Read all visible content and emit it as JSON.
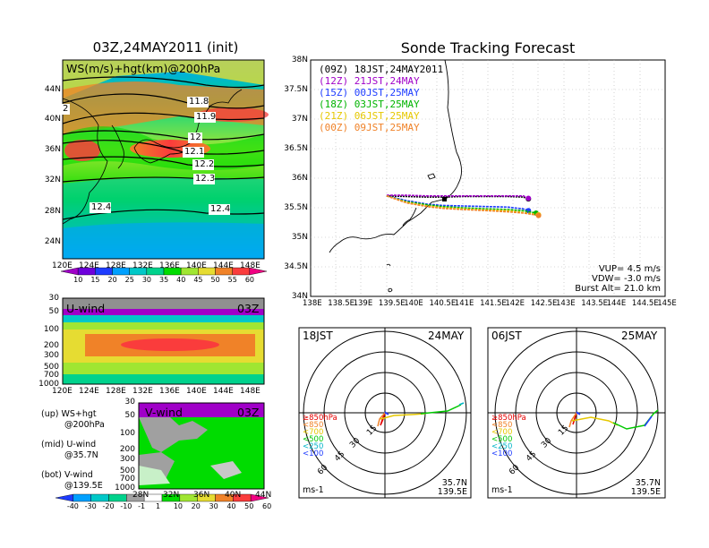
{
  "left": {
    "map": {
      "title": "03Z,24MAY2011 (init)",
      "label": "WS(m/s)+hgt(km)@200hPa",
      "lat_ticks": [
        "44N",
        "40N",
        "36N",
        "32N",
        "28N",
        "24N"
      ],
      "lon_ticks": [
        "120E",
        "124E",
        "128E",
        "132E",
        "136E",
        "140E",
        "144E",
        "148E"
      ],
      "contours": [
        "11.8",
        "11.9",
        "12",
        "12.1",
        "12.2",
        "12.3",
        "12.4",
        "12.4",
        "2"
      ],
      "colorbar_labels": [
        "10",
        "15",
        "20",
        "25",
        "30",
        "35",
        "40",
        "45",
        "50",
        "55",
        "60"
      ],
      "colorbar_colors": [
        "#a000c8",
        "#6e00dc",
        "#1e3cff",
        "#00a0ff",
        "#00c8c8",
        "#00d28c",
        "#00dc00",
        "#a0e632",
        "#e6dc32",
        "#f08228",
        "#fa3c3c",
        "#f00082"
      ]
    },
    "u_wind": {
      "label": "U-wind",
      "time": "03Z",
      "y_ticks": [
        "30",
        "50",
        "100",
        "200",
        "300",
        "500",
        "700",
        "1000"
      ],
      "x_ticks": [
        "120E",
        "124E",
        "128E",
        "132E",
        "136E",
        "140E",
        "144E",
        "148E"
      ]
    },
    "v_wind": {
      "label": "V-wind",
      "time": "03Z",
      "y_ticks": [
        "30",
        "50",
        "100",
        "200",
        "300",
        "500",
        "700",
        "1000"
      ],
      "x_ticks": [
        "28N",
        "32N",
        "36N",
        "40N",
        "44N"
      ]
    },
    "legend_notes": [
      {
        "a": "(up) WS+hgt",
        "b": "@200hPa"
      },
      {
        "a": "(mid) U-wind",
        "b": "@35.7N"
      },
      {
        "a": "(bot) V-wind",
        "b": "@139.5E"
      }
    ],
    "bottom_colorbar_labels": [
      "-40",
      "-30",
      "-20",
      "-10",
      "-1",
      "1",
      "10",
      "20",
      "30",
      "40",
      "50",
      "60"
    ],
    "bottom_colorbar_colors": [
      "#1e3cff",
      "#00a0ff",
      "#00c8c8",
      "#00d28c",
      "#a0a0a0",
      "#ffffff",
      "#00dc00",
      "#a0e632",
      "#e6dc32",
      "#f08228",
      "#fa3c3c",
      "#f00082"
    ]
  },
  "right": {
    "title": "Sonde Tracking Forecast",
    "legend": [
      {
        "code": "(09Z)",
        "text": "18JST,24MAY2011",
        "color": "#000000"
      },
      {
        "code": "(12Z)",
        "text": "21JST,24MAY",
        "color": "#a000c8"
      },
      {
        "code": "(15Z)",
        "text": "00JST,25MAY",
        "color": "#1e3cff"
      },
      {
        "code": "(18Z)",
        "text": "03JST,25MAY",
        "color": "#00b400"
      },
      {
        "code": "(21Z)",
        "text": "06JST,25MAY",
        "color": "#e6c800"
      },
      {
        "code": "(00Z)",
        "text": "09JST,25MAY",
        "color": "#f08228"
      }
    ],
    "lat_ticks": [
      "38N",
      "37.5N",
      "37N",
      "36.5N",
      "36N",
      "35.5N",
      "35N",
      "34.5N",
      "34N"
    ],
    "lon_ticks": [
      "138E",
      "138.5E",
      "139E",
      "139.5E",
      "140E",
      "140.5E",
      "141E",
      "141.5E",
      "142E",
      "142.5E",
      "143E",
      "143.5E",
      "144E",
      "144.5E",
      "145E"
    ],
    "params": [
      "VUP= 4.5 m/s",
      "VDW= -3.0 m/s",
      "Burst Alt= 21.0 km"
    ]
  },
  "polar": [
    {
      "time": "18JST",
      "date": "24MAY",
      "rings": [
        "15",
        "30",
        "45",
        "60"
      ],
      "pressure_levels": [
        "≥850hPa",
        "<850",
        "<700",
        "<500",
        "<250",
        "<100"
      ],
      "level_colors": [
        "#e60000",
        "#f08228",
        "#e6c800",
        "#00c800",
        "#00b4c8",
        "#1e3cff"
      ],
      "lat": "35.7N",
      "lon": "139.5E",
      "unit": "ms-1"
    },
    {
      "time": "06JST",
      "date": "25MAY",
      "rings": [
        "15",
        "30",
        "45",
        "60"
      ],
      "pressure_levels": [
        "≥850hPa",
        "<850",
        "<700",
        "<500",
        "<250",
        "<100"
      ],
      "level_colors": [
        "#e60000",
        "#f08228",
        "#e6c800",
        "#00c800",
        "#00b4c8",
        "#1e3cff"
      ],
      "lat": "35.7N",
      "lon": "139.5E",
      "unit": "ms-1"
    }
  ],
  "chart_data": [
    {
      "type": "heatmap",
      "title": "03Z,24MAY2011 (init)",
      "label": "WS(m/s)+hgt(km)@200hPa",
      "xlabel": "",
      "ylabel": "",
      "xlim": [
        "120E",
        "150E"
      ],
      "ylim": [
        "22N",
        "47N"
      ],
      "colorbar": [
        10,
        15,
        20,
        25,
        30,
        35,
        40,
        45,
        50,
        55,
        60
      ],
      "contour_values": [
        11.8,
        11.9,
        12,
        12.1,
        12.2,
        12.3,
        12.4
      ]
    },
    {
      "type": "heatmap",
      "title": "",
      "label": "U-wind",
      "xlim": [
        "120E",
        "150E"
      ],
      "yticks": [
        30,
        50,
        100,
        200,
        300,
        500,
        700,
        1000
      ]
    },
    {
      "type": "heatmap",
      "title": "",
      "label": "V-wind",
      "xlim": [
        "28N",
        "44N"
      ],
      "yticks": [
        30,
        50,
        100,
        200,
        300,
        500,
        700,
        1000
      ],
      "colorbar": [
        -40,
        -30,
        -20,
        -10,
        -1,
        1,
        10,
        20,
        30,
        40,
        50,
        60
      ]
    },
    {
      "type": "line",
      "title": "Sonde Tracking Forecast",
      "xlim": [
        138,
        145
      ],
      "ylim": [
        34,
        38
      ],
      "series": [
        {
          "name": "18JST,24MAY2011",
          "x": [
            139.5,
            139.9,
            140.3,
            140.6,
            141.0,
            141.5,
            141.9,
            142.2,
            142.3
          ],
          "y": [
            35.7,
            35.69,
            35.68,
            35.68,
            35.69,
            35.69,
            35.69,
            35.68,
            35.65
          ]
        },
        {
          "name": "21JST,24MAY",
          "x": [
            139.5,
            139.9,
            140.3,
            140.6,
            141.0,
            141.5,
            141.9,
            142.2,
            142.3
          ],
          "y": [
            35.71,
            35.71,
            35.7,
            35.7,
            35.7,
            35.7,
            35.7,
            35.7,
            35.66
          ]
        },
        {
          "name": "00JST,25MAY",
          "x": [
            139.5,
            139.9,
            140.3,
            140.6,
            141.0,
            141.5,
            141.9,
            142.2,
            142.3
          ],
          "y": [
            35.7,
            35.62,
            35.56,
            35.54,
            35.53,
            35.52,
            35.51,
            35.48,
            35.45
          ]
        },
        {
          "name": "03JST,25MAY",
          "x": [
            139.5,
            139.9,
            140.3,
            140.6,
            141.0,
            141.5,
            141.9,
            142.2,
            142.45
          ],
          "y": [
            35.7,
            35.6,
            35.55,
            35.52,
            35.5,
            35.48,
            35.47,
            35.45,
            35.41
          ]
        },
        {
          "name": "06JST,25MAY",
          "x": [
            139.5,
            139.9,
            140.3,
            140.6,
            141.0,
            141.5,
            141.9,
            142.2,
            142.5
          ],
          "y": [
            35.7,
            35.59,
            35.53,
            35.5,
            35.48,
            35.46,
            35.45,
            35.42,
            35.38
          ]
        },
        {
          "name": "09JST,25MAY",
          "x": [
            139.5,
            139.9,
            140.3,
            140.6,
            141.0,
            141.5,
            141.9,
            142.2,
            142.5
          ],
          "y": [
            35.7,
            35.58,
            35.52,
            35.49,
            35.47,
            35.45,
            35.43,
            35.41,
            35.37
          ]
        }
      ],
      "params": {
        "VUP_m_s": 4.5,
        "VDW_m_s": -3.0,
        "burst_alt_km": 21.0
      }
    }
  ]
}
